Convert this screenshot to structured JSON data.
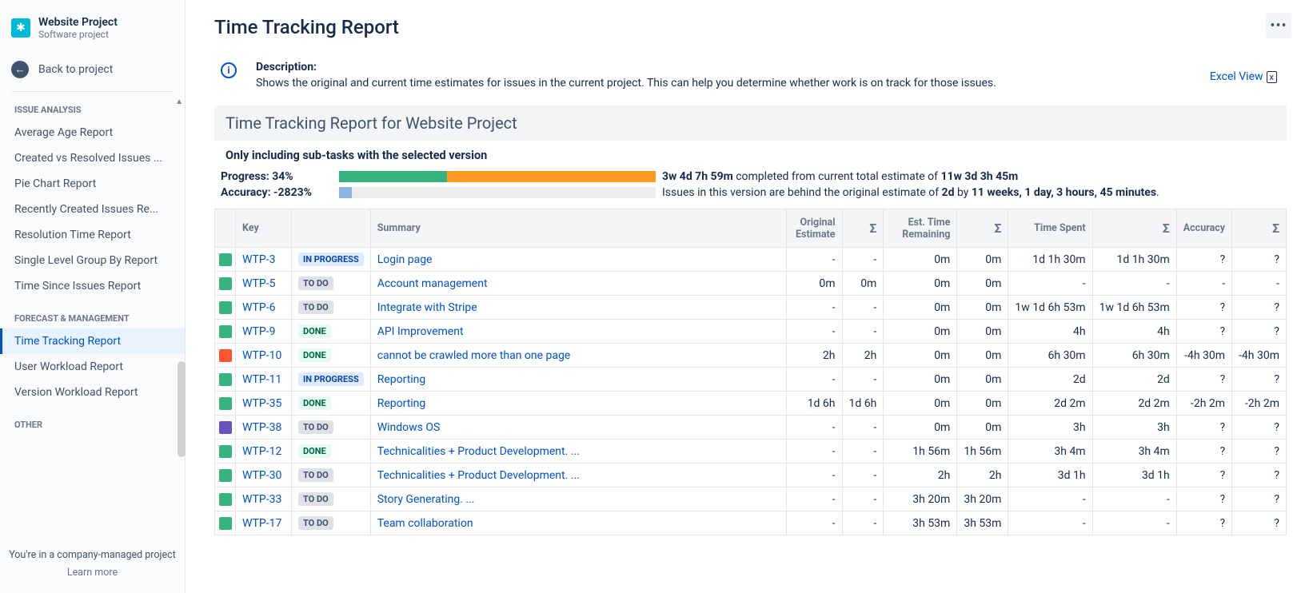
{
  "project": {
    "name": "Website Project",
    "subtitle": "Software project"
  },
  "back": {
    "label": "Back to project"
  },
  "sections": {
    "issue_analysis": {
      "label": "ISSUE ANALYSIS",
      "items": [
        "Average Age Report",
        "Created vs Resolved Issues ...",
        "Pie Chart Report",
        "Recently Created Issues Re...",
        "Resolution Time Report",
        "Single Level Group By Report",
        "Time Since Issues Report"
      ]
    },
    "forecast": {
      "label": "FORECAST & MANAGEMENT",
      "items": [
        "Time Tracking Report",
        "User Workload Report",
        "Version Workload Report"
      ],
      "active_index": 0
    },
    "other": {
      "label": "OTHER"
    }
  },
  "footer": {
    "text": "You're in a company-managed project",
    "learn": "Learn more"
  },
  "page": {
    "title": "Time Tracking Report",
    "desc_title": "Description:",
    "desc_text": "Shows the original and current time estimates for issues in the current project. This can help you determine whether work is on track for those issues.",
    "excel_label": "Excel View",
    "report_header": "Time Tracking Report for Website Project",
    "subfilter": "Only including sub-tasks with the selected version"
  },
  "progress": {
    "label": "Progress: 34%",
    "bar": {
      "segments": [
        {
          "color": "#36B37E",
          "width_pct": 34
        },
        {
          "color": "#FF991F",
          "width_pct": 66
        }
      ]
    },
    "text_prefix": "3w 4d 7h 59m",
    "text_mid": " completed from current total estimate of ",
    "text_bold2": "11w 3d 3h 45m"
  },
  "accuracy": {
    "label": "Accuracy: -2823%",
    "bar": {
      "segments": [
        {
          "color": "#8DB4E2",
          "width_pct": 4
        },
        {
          "color": "#eeeeee",
          "width_pct": 96
        }
      ]
    },
    "text_prefix": "Issues in this version are behind the original estimate of ",
    "text_bold1": "2d",
    "text_mid": " by ",
    "text_bold2": "11 weeks, 1 day, 3 hours, 45 minutes",
    "text_suffix": "."
  },
  "columns": {
    "key": "Key",
    "summary": "Summary",
    "original": "Original Estimate",
    "est_time": "Est. Time Remaining",
    "time_spent": "Time Spent",
    "accuracy": "Accuracy",
    "sigma": "Σ"
  },
  "type_colors": {
    "story": "#36B37E",
    "bug": "#FF5630",
    "epic": "#6554C0"
  },
  "status_styles": {
    "TO DO": "status-todo",
    "IN PROGRESS": "status-inprogress",
    "DONE": "status-done"
  },
  "rows": [
    {
      "type": "story",
      "key": "WTP-3",
      "status": "IN PROGRESS",
      "summary": "Login page",
      "orig": "-",
      "orig_s": "-",
      "est": "0m",
      "est_s": "0m",
      "spent": "1d 1h 30m",
      "spent_s": "1d 1h 30m",
      "acc": "?",
      "acc_s": "?"
    },
    {
      "type": "story",
      "key": "WTP-5",
      "status": "TO DO",
      "summary": "Account management",
      "orig": "0m",
      "orig_s": "0m",
      "est": "0m",
      "est_s": "0m",
      "spent": "-",
      "spent_s": "-",
      "acc": "-",
      "acc_s": "-"
    },
    {
      "type": "story",
      "key": "WTP-6",
      "status": "TO DO",
      "summary": "Integrate with Stripe",
      "orig": "-",
      "orig_s": "-",
      "est": "0m",
      "est_s": "0m",
      "spent": "1w 1d 6h 53m",
      "spent_s": "1w 1d 6h 53m",
      "acc": "?",
      "acc_s": "?"
    },
    {
      "type": "story",
      "key": "WTP-9",
      "status": "DONE",
      "summary": "API Improvement",
      "orig": "-",
      "orig_s": "-",
      "est": "0m",
      "est_s": "0m",
      "spent": "4h",
      "spent_s": "4h",
      "acc": "?",
      "acc_s": "?"
    },
    {
      "type": "bug",
      "key": "WTP-10",
      "status": "DONE",
      "summary": "cannot be crawled more than one page",
      "orig": "2h",
      "orig_s": "2h",
      "est": "0m",
      "est_s": "0m",
      "spent": "6h 30m",
      "spent_s": "6h 30m",
      "acc": "-4h 30m",
      "acc_s": "-4h 30m"
    },
    {
      "type": "story",
      "key": "WTP-11",
      "status": "IN PROGRESS",
      "summary": "Reporting",
      "orig": "-",
      "orig_s": "-",
      "est": "0m",
      "est_s": "0m",
      "spent": "2d",
      "spent_s": "2d",
      "acc": "?",
      "acc_s": "?"
    },
    {
      "type": "story",
      "key": "WTP-35",
      "status": "DONE",
      "summary": "Reporting",
      "orig": "1d 6h",
      "orig_s": "1d 6h",
      "est": "0m",
      "est_s": "0m",
      "spent": "2d 2m",
      "spent_s": "2d 2m",
      "acc": "-2h 2m",
      "acc_s": "-2h 2m"
    },
    {
      "type": "epic",
      "key": "WTP-38",
      "status": "TO DO",
      "summary": "Windows OS",
      "orig": "-",
      "orig_s": "-",
      "est": "0m",
      "est_s": "0m",
      "spent": "3h",
      "spent_s": "3h",
      "acc": "?",
      "acc_s": "?"
    },
    {
      "type": "story",
      "key": "WTP-12",
      "status": "DONE",
      "summary": "Technicalities + Product Development. ...",
      "orig": "-",
      "orig_s": "-",
      "est": "1h 56m",
      "est_s": "1h 56m",
      "spent": "3h 4m",
      "spent_s": "3h 4m",
      "acc": "?",
      "acc_s": "?"
    },
    {
      "type": "story",
      "key": "WTP-30",
      "status": "TO DO",
      "summary": "Technicalities + Product Development. ...",
      "orig": "-",
      "orig_s": "-",
      "est": "2h",
      "est_s": "2h",
      "spent": "3d 1h",
      "spent_s": "3d 1h",
      "acc": "?",
      "acc_s": "?"
    },
    {
      "type": "story",
      "key": "WTP-33",
      "status": "TO DO",
      "summary": "Story Generating. ...",
      "orig": "-",
      "orig_s": "-",
      "est": "3h 20m",
      "est_s": "3h 20m",
      "spent": "-",
      "spent_s": "-",
      "acc": "?",
      "acc_s": "?"
    },
    {
      "type": "story",
      "key": "WTP-17",
      "status": "TO DO",
      "summary": "Team collaboration",
      "orig": "-",
      "orig_s": "-",
      "est": "3h 53m",
      "est_s": "3h 53m",
      "spent": "-",
      "spent_s": "-",
      "acc": "?",
      "acc_s": "?"
    }
  ]
}
